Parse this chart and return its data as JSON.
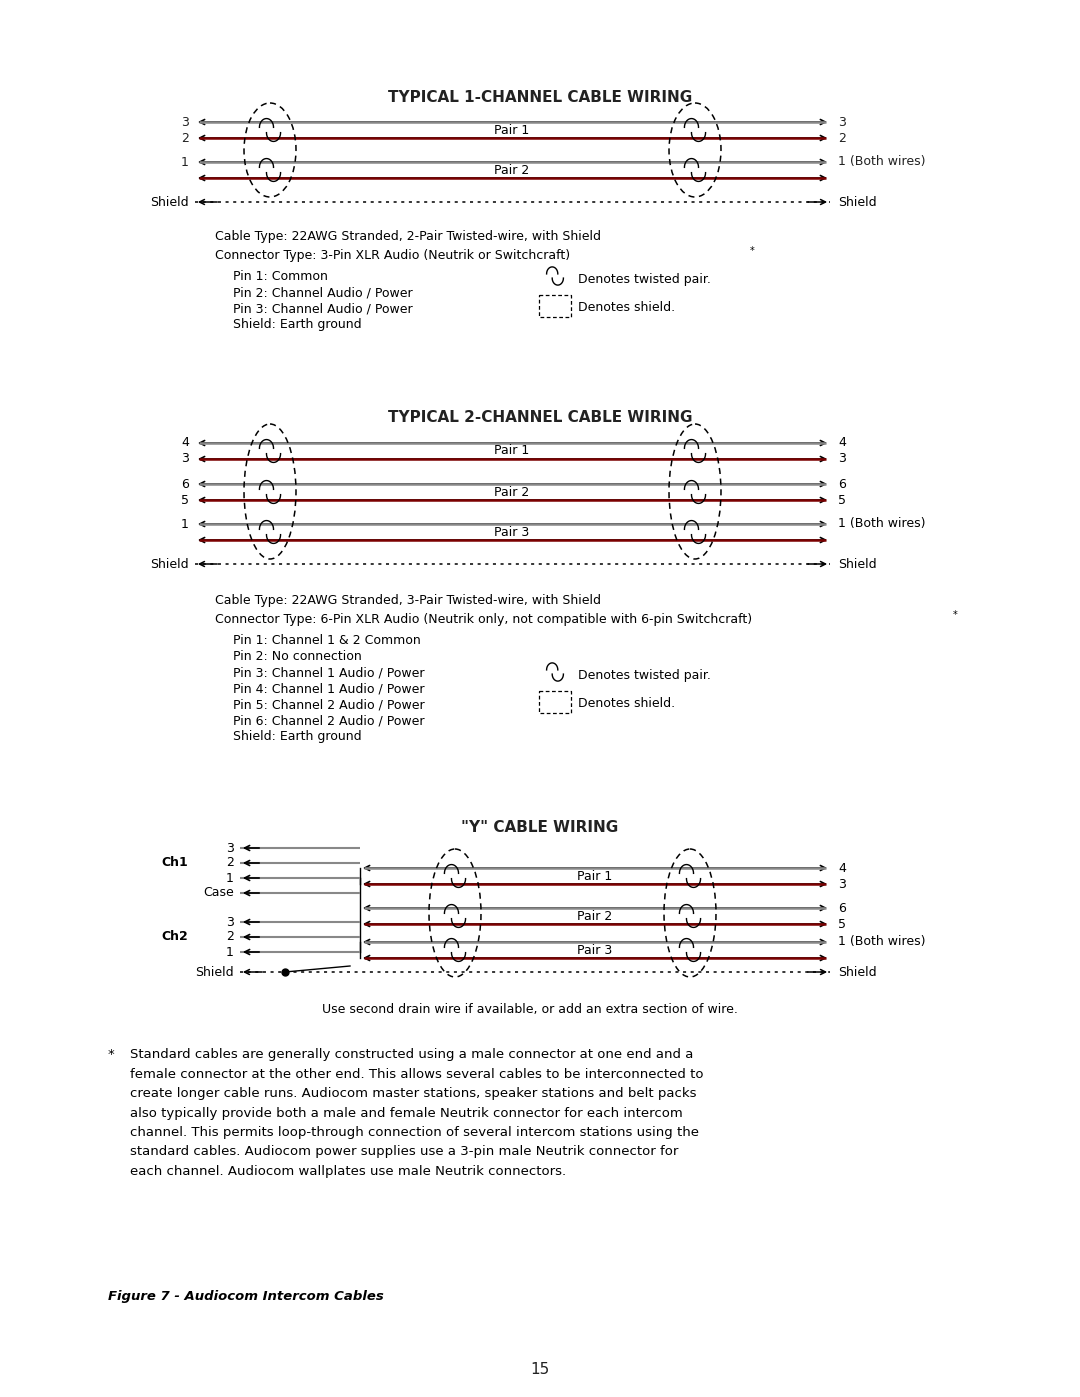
{
  "bg_color": "#ffffff",
  "title1": "TYPICAL 1-CHANNEL CABLE WIRING",
  "title2": "TYPICAL 2-CHANNEL CABLE WIRING",
  "title3": "\"Y\" CABLE WIRING",
  "page_number": "15",
  "figure_caption": "Figure 7 - Audiocom Intercom Cables",
  "sec1_cable": "Cable Type: 22AWG Stranded, 2-Pair Twisted-wire, with Shield",
  "sec1_conn": "Connector Type: 3-Pin XLR Audio (Neutrik or Switchcraft)",
  "sec1_pins": [
    "Pin 1: Common",
    "Pin 2: Channel Audio / Power",
    "Pin 3: Channel Audio / Power",
    "Shield: Earth ground"
  ],
  "sec2_cable": "Cable Type: 22AWG Stranded, 3-Pair Twisted-wire, with Shield",
  "sec2_conn": "Connector Type: 6-Pin XLR Audio (Neutrik only, not compatible with 6-pin Switchcraft)",
  "sec2_pins": [
    "Pin 1: Channel 1 & 2 Common",
    "Pin 2: No connection",
    "Pin 3: Channel 1 Audio / Power",
    "Pin 4: Channel 1 Audio / Power",
    "Pin 5: Channel 2 Audio / Power",
    "Pin 6: Channel 2 Audio / Power",
    "Shield: Earth ground"
  ],
  "legend_twisted": "Denotes twisted pair.",
  "legend_shield": "Denotes shield.",
  "ycable_note": "Use second drain wire if available, or add an extra section of wire.",
  "footnote_star": "*",
  "footnote": "Standard cables are generally constructed using a male connector at one end and a\nfemale connector at the other end. This allows several cables to be interconnected to\ncreate longer cable runs. Audiocom master stations, speaker stations and belt packs\nalso typically provide both a male and female Neutrik connector for each intercom\nchannel. This permits loop-through connection of several intercom stations using the\nstandard cables. Audiocom power supplies use a 3-pin male Neutrik connector for\neach channel. Audiocom wallplates use male Neutrik connectors."
}
